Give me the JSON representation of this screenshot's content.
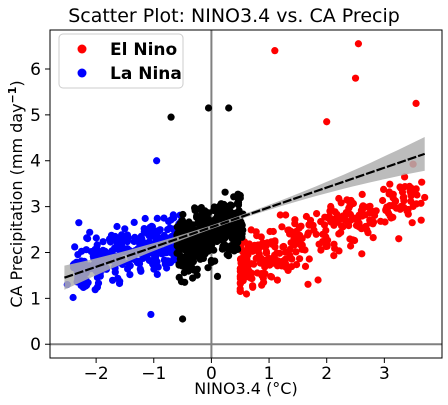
{
  "chart_data": {
    "type": "scatter",
    "title": "Scatter Plot: NINO3.4 vs. CA Precip",
    "xlabel": "NINO3.4 (°C)",
    "ylabel_main": "CA Precipitation (mm day",
    "ylabel_exp": "−1",
    "ylabel_close": ")",
    "xlim": [
      -2.8,
      4.0
    ],
    "ylim": [
      -0.3,
      6.85
    ],
    "x_ticks": [
      -2,
      -1,
      0,
      1,
      2,
      3
    ],
    "x_tick_labels": [
      "−2",
      "−1",
      "0",
      "1",
      "2",
      "3"
    ],
    "y_ticks": [
      0,
      1,
      2,
      3,
      4,
      5,
      6
    ],
    "y_tick_labels": [
      "0",
      "1",
      "2",
      "3",
      "4",
      "5",
      "6"
    ],
    "reference_lines": {
      "x": 0,
      "y": 0,
      "color": "#808080"
    },
    "legend": {
      "placement": "top-left",
      "entries": [
        {
          "label": "El Nino",
          "color": "#ff0000"
        },
        {
          "label": "La Nina",
          "color": "#0000ff"
        }
      ]
    },
    "series": [
      {
        "name": "El Nino",
        "color": "#ff0000",
        "x_range": [
          0.5,
          3.65
        ],
        "y_center": 2.5,
        "slope": 0.5,
        "spread": 0.55,
        "count": 330
      },
      {
        "name": "La Nina",
        "color": "#0000ff",
        "x_range": [
          -2.4,
          -0.5
        ],
        "y_center": 2.0,
        "slope": 0.4,
        "spread": 0.45,
        "count": 330
      },
      {
        "color": "#000000",
        "x_range": [
          -0.6,
          0.55
        ],
        "y_center": 2.45,
        "slope": 0.5,
        "spread": 0.55,
        "count": 390
      }
    ],
    "annotated_points": [
      {
        "x": 2.55,
        "y": 6.55,
        "color": "#ff0000"
      },
      {
        "x": 1.1,
        "y": 6.4,
        "color": "#ff0000"
      },
      {
        "x": 2.5,
        "y": 5.8,
        "color": "#ff0000"
      },
      {
        "x": 3.55,
        "y": 5.25,
        "color": "#ff0000"
      },
      {
        "x": -0.05,
        "y": 5.15,
        "color": "#000000"
      },
      {
        "x": 0.3,
        "y": 5.15,
        "color": "#000000"
      },
      {
        "x": -0.7,
        "y": 4.95,
        "color": "#000000"
      },
      {
        "x": 2.0,
        "y": 4.85,
        "color": "#ff0000"
      },
      {
        "x": -0.95,
        "y": 4.0,
        "color": "#0000ff"
      },
      {
        "x": -2.3,
        "y": 2.65,
        "color": "#0000ff"
      },
      {
        "x": -2.5,
        "y": 1.3,
        "color": "#0000ff"
      },
      {
        "x": -1.05,
        "y": 0.65,
        "color": "#0000ff"
      },
      {
        "x": -0.5,
        "y": 0.55,
        "color": "#000000"
      },
      {
        "x": 3.7,
        "y": 3.2,
        "color": "#ff0000"
      },
      {
        "x": 3.25,
        "y": 2.3,
        "color": "#ff0000"
      },
      {
        "x": 1.85,
        "y": 1.4,
        "color": "#ff0000"
      }
    ],
    "regression": {
      "x": [
        -2.55,
        3.7
      ],
      "y": [
        1.45,
        4.15
      ],
      "band_color": "#b0b0b0",
      "line_color": "#000000"
    }
  }
}
